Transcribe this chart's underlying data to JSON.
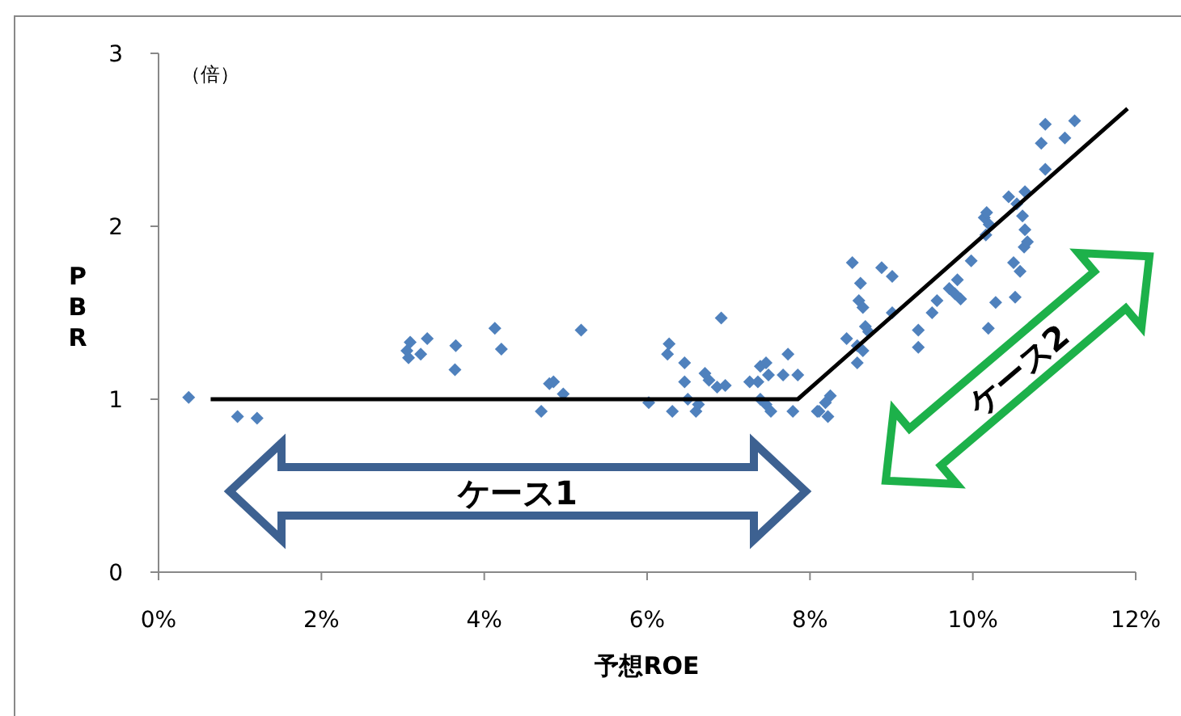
{
  "chart_data": {
    "type": "scatter",
    "xlabel": "予想ROE",
    "ylabel": "PBR",
    "annotations": [
      "（倍）",
      "ケース1",
      "ケース2"
    ],
    "xlim": [
      0,
      12
    ],
    "ylim": [
      0,
      3
    ],
    "xticks": [
      {
        "value": 0,
        "label": "0%"
      },
      {
        "value": 2,
        "label": "2%"
      },
      {
        "value": 4,
        "label": "4%"
      },
      {
        "value": 6,
        "label": "6%"
      },
      {
        "value": 8,
        "label": "8%"
      },
      {
        "value": 10,
        "label": "10%"
      },
      {
        "value": 12,
        "label": "12%"
      }
    ],
    "yticks": [
      0,
      1,
      2,
      3
    ],
    "grid": false,
    "series": [
      {
        "marker": "diamond",
        "color": "#4f81bd",
        "x": [
          0.37,
          0.97,
          1.21,
          3.07,
          3.09,
          3.05,
          3.22,
          3.3,
          3.65,
          3.64,
          4.13,
          4.21,
          4.7,
          4.8,
          4.85,
          4.97,
          5.19,
          6.02,
          6.27,
          6.25,
          6.31,
          6.46,
          6.46,
          6.5,
          6.6,
          6.63,
          6.71,
          6.76,
          6.91,
          6.86,
          6.96,
          7.26,
          7.36,
          7.39,
          7.46,
          7.49,
          7.39,
          7.46,
          7.52,
          7.67,
          7.73,
          7.85,
          7.79,
          8.09,
          8.11,
          8.22,
          8.25,
          8.19,
          8.52,
          8.62,
          8.6,
          8.65,
          8.68,
          8.45,
          8.58,
          8.65,
          8.58,
          8.72,
          8.88,
          9.01,
          9.01,
          9.33,
          9.33,
          9.5,
          9.56,
          9.71,
          9.81,
          9.85,
          9.78,
          9.98,
          10.19,
          10.28,
          10.14,
          10.17,
          10.2,
          10.16,
          10.44,
          10.54,
          10.64,
          10.61,
          10.64,
          10.63,
          10.67,
          10.5,
          10.58,
          10.52,
          10.89,
          10.84,
          10.89,
          11.13,
          11.25
        ],
        "values": [
          1.01,
          0.9,
          0.89,
          1.24,
          1.33,
          1.28,
          1.26,
          1.35,
          1.31,
          1.17,
          1.41,
          1.29,
          0.93,
          1.09,
          1.1,
          1.03,
          1.4,
          0.98,
          1.32,
          1.26,
          0.93,
          1.21,
          1.1,
          1.0,
          0.93,
          0.97,
          1.15,
          1.11,
          1.47,
          1.07,
          1.08,
          1.1,
          1.1,
          1.19,
          1.21,
          1.14,
          1.0,
          0.97,
          0.93,
          1.14,
          1.26,
          1.14,
          0.93,
          0.93,
          0.93,
          0.9,
          1.02,
          0.98,
          1.79,
          1.67,
          1.57,
          1.53,
          1.42,
          1.35,
          1.31,
          1.28,
          1.21,
          1.39,
          1.76,
          1.71,
          1.5,
          1.4,
          1.3,
          1.5,
          1.57,
          1.64,
          1.69,
          1.58,
          1.61,
          1.8,
          1.41,
          1.56,
          2.05,
          2.08,
          2.01,
          1.95,
          2.17,
          2.13,
          2.2,
          2.06,
          1.98,
          1.88,
          1.91,
          1.79,
          1.74,
          1.59,
          2.33,
          2.48,
          2.59,
          2.51,
          2.61
        ]
      },
      {
        "type": "line",
        "color": "#000000",
        "x": [
          0.64,
          7.85,
          11.9
        ],
        "values": [
          1.0,
          1.0,
          2.68
        ]
      }
    ]
  }
}
